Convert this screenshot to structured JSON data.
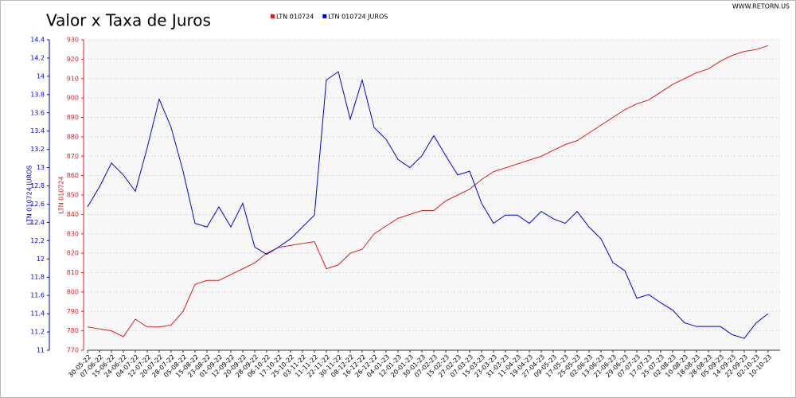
{
  "chart_data": {
    "type": "line",
    "title": "Valor x Taxa de Juros",
    "source": "WWW.RETORN.US",
    "ylabel": "LTN 010724",
    "y2label": "LTN 010724 JUROS",
    "categories": [
      "30-05-22",
      "07-06-22",
      "15-06-22",
      "24-06-22",
      "04-07-22",
      "12-07-22",
      "20-07-22",
      "28-07-22",
      "05-08-22",
      "15-08-22",
      "23-08-22",
      "01-09-22",
      "12-09-22",
      "20-09-22",
      "28-09-22",
      "06-10-22",
      "17-10-22",
      "25-10-22",
      "03-11-22",
      "11-11-22",
      "22-11-22",
      "30-11-22",
      "08-12-22",
      "16-12-22",
      "26-12-22",
      "04-01-23",
      "12-01-23",
      "20-01-23",
      "30-01-23",
      "07-02-23",
      "15-02-23",
      "27-02-23",
      "07-03-23",
      "15-03-23",
      "23-03-23",
      "31-03-23",
      "11-04-23",
      "19-04-23",
      "27-04-23",
      "09-05-23",
      "17-05-23",
      "25-05-23",
      "02-06-23",
      "13-06-23",
      "21-06-23",
      "29-06-23",
      "07-07-23",
      "17-07-23",
      "25-07-23",
      "02-08-23",
      "10-08-23",
      "18-08-23",
      "28-08-23",
      "05-09-23",
      "14-09-23",
      "22-09-23",
      "02-10-23",
      "10-10-23"
    ],
    "series": [
      {
        "name": "LTN 010724",
        "color": "#e41a1c",
        "axis": "y",
        "values": [
          782,
          781,
          780,
          777,
          786,
          782,
          782,
          783,
          790,
          804,
          806,
          806,
          809,
          812,
          815,
          820,
          823,
          824,
          825,
          826,
          812,
          814,
          820,
          822,
          830,
          834,
          838,
          840,
          842,
          842,
          847,
          850,
          853,
          858,
          862,
          864,
          866,
          868,
          870,
          873,
          876,
          878,
          882,
          886,
          890,
          894,
          897,
          899,
          903,
          907,
          910,
          913,
          915,
          919,
          922,
          924,
          925,
          927
        ]
      },
      {
        "name": "LTN 010724 JUROS",
        "color": "#0000dd",
        "axis": "y2",
        "values": [
          12.57,
          12.79,
          13.05,
          12.92,
          12.74,
          13.22,
          13.75,
          13.44,
          12.96,
          12.39,
          12.35,
          12.57,
          12.35,
          12.61,
          12.13,
          12.05,
          12.13,
          12.22,
          12.35,
          12.48,
          13.96,
          14.05,
          13.53,
          13.96,
          13.44,
          13.31,
          13.09,
          13.0,
          13.13,
          13.35,
          13.13,
          12.92,
          12.96,
          12.61,
          12.39,
          12.48,
          12.48,
          12.39,
          12.52,
          12.44,
          12.39,
          12.52,
          12.35,
          12.22,
          11.96,
          11.87,
          11.57,
          11.61,
          11.52,
          11.44,
          11.3,
          11.26,
          11.26,
          11.26,
          11.17,
          11.13,
          11.3,
          11.4
        ]
      }
    ],
    "ylim": [
      770,
      930
    ],
    "yticks": [
      770,
      780,
      790,
      800,
      810,
      820,
      830,
      840,
      850,
      860,
      870,
      880,
      890,
      900,
      910,
      920,
      930
    ],
    "y2lim": [
      11,
      14.4
    ],
    "y2ticks": [
      11,
      11.2,
      11.4,
      11.6,
      11.8,
      12,
      12.2,
      12.4,
      12.6,
      12.8,
      13,
      13.2,
      13.4,
      13.6,
      13.8,
      14,
      14.2,
      14.4
    ],
    "grid": true
  }
}
